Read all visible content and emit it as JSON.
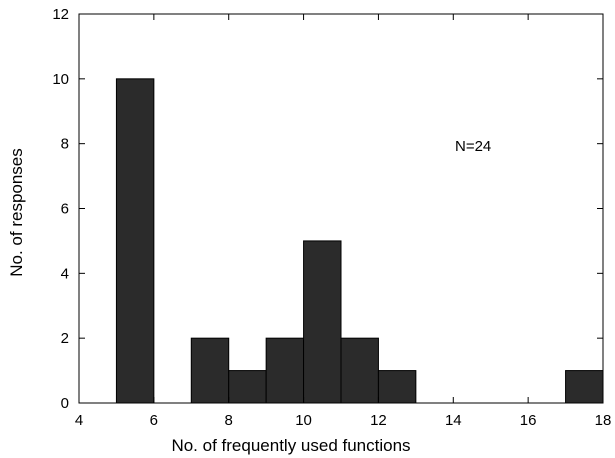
{
  "chart_data": {
    "type": "bar",
    "xlabel": "No. of frequently used functions",
    "ylabel": "No. of responses",
    "xlim": [
      4,
      18
    ],
    "ylim": [
      0,
      12
    ],
    "xticks": [
      4,
      6,
      8,
      10,
      12,
      14,
      16,
      18
    ],
    "yticks": [
      0,
      2,
      4,
      6,
      8,
      10,
      12
    ],
    "annotation": "N=24",
    "bin_width": 1,
    "bins": [
      {
        "start": 5,
        "end": 6,
        "value": 10
      },
      {
        "start": 7,
        "end": 8,
        "value": 2
      },
      {
        "start": 8,
        "end": 9,
        "value": 1
      },
      {
        "start": 9,
        "end": 10,
        "value": 2
      },
      {
        "start": 10,
        "end": 11,
        "value": 5
      },
      {
        "start": 11,
        "end": 12,
        "value": 2
      },
      {
        "start": 12,
        "end": 13,
        "value": 1
      },
      {
        "start": 17,
        "end": 18,
        "value": 1
      }
    ],
    "bar_color": "#2b2b2b",
    "grid": false,
    "legend": "none"
  }
}
